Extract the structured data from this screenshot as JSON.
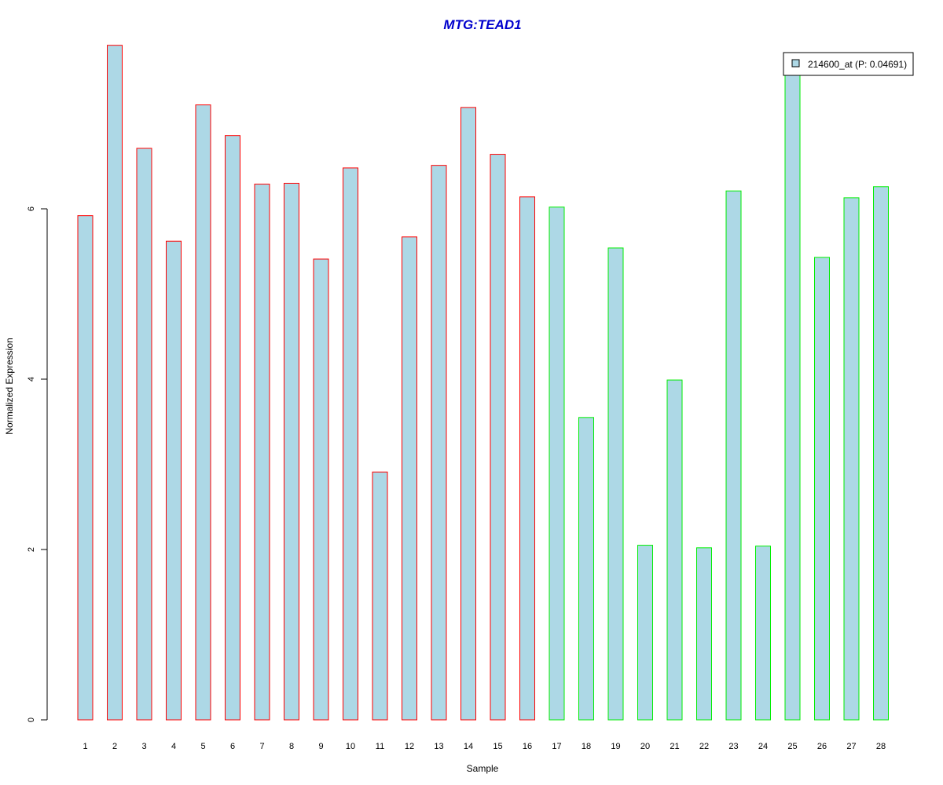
{
  "chart_data": {
    "type": "bar",
    "title": "MTG:TEAD1",
    "xlabel": "Sample",
    "ylabel": "Normalized Expression",
    "categories": [
      "1",
      "2",
      "3",
      "4",
      "5",
      "6",
      "7",
      "8",
      "9",
      "10",
      "11",
      "12",
      "13",
      "14",
      "15",
      "16",
      "17",
      "18",
      "19",
      "20",
      "21",
      "22",
      "23",
      "24",
      "25",
      "26",
      "27",
      "28"
    ],
    "values": [
      5.92,
      7.92,
      6.71,
      5.62,
      7.22,
      6.86,
      6.29,
      6.3,
      5.41,
      6.48,
      2.91,
      5.67,
      6.51,
      7.19,
      6.64,
      6.14,
      6.02,
      3.55,
      5.54,
      2.05,
      3.99,
      2.02,
      6.21,
      2.04,
      7.65,
      5.43,
      6.13,
      6.26
    ],
    "groups": [
      "a",
      "a",
      "a",
      "a",
      "a",
      "a",
      "a",
      "a",
      "a",
      "a",
      "a",
      "a",
      "a",
      "a",
      "a",
      "a",
      "b",
      "b",
      "b",
      "b",
      "b",
      "b",
      "b",
      "b",
      "b",
      "b",
      "b",
      "b"
    ],
    "group_colors": {
      "a": "#ff0000",
      "b": "#00ee00"
    },
    "fill_color": "#add8e6",
    "title_color": "#0000cd",
    "y_ticks": [
      0,
      2,
      4,
      6
    ],
    "ylim": [
      0,
      7.92
    ],
    "legend": {
      "label": "214600_at (P: 0.04691)",
      "position": "top-right"
    },
    "grid": false
  }
}
